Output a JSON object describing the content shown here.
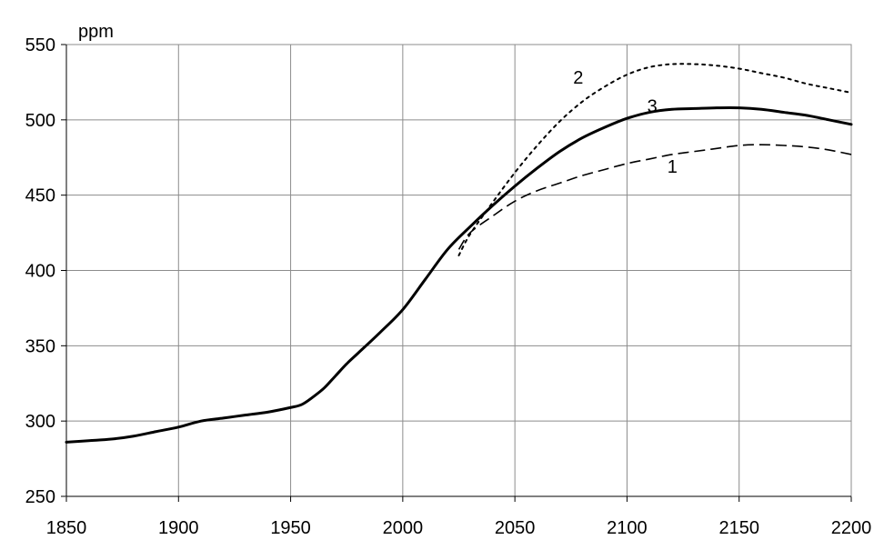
{
  "chart_data": {
    "type": "line",
    "title": "",
    "xlabel": "",
    "ylabel": "ppm",
    "xlim": [
      1850,
      2200
    ],
    "ylim": [
      250,
      550
    ],
    "xticks": [
      1850,
      1900,
      1950,
      2000,
      2050,
      2100,
      2150,
      2200
    ],
    "yticks": [
      250,
      300,
      350,
      400,
      450,
      500,
      550
    ],
    "grid": true,
    "legend": "none",
    "series": [
      {
        "label": "3",
        "style": "solid",
        "color": "#000000",
        "x": [
          1850,
          1860,
          1870,
          1880,
          1890,
          1900,
          1910,
          1920,
          1930,
          1940,
          1950,
          1955,
          1960,
          1965,
          1970,
          1975,
          1980,
          1990,
          2000,
          2010,
          2020,
          2030,
          2040,
          2050,
          2060,
          2070,
          2080,
          2090,
          2100,
          2110,
          2120,
          2130,
          2140,
          2150,
          2160,
          2170,
          2180,
          2190,
          2200
        ],
        "y": [
          286,
          287,
          288,
          290,
          293,
          296,
          300,
          302,
          304,
          306,
          309,
          311,
          316,
          322,
          330,
          338,
          345,
          359,
          374,
          394,
          414,
          429,
          443,
          456,
          468,
          479,
          488,
          495,
          501,
          505,
          507,
          507.5,
          508,
          508,
          507,
          505,
          503,
          500,
          497
        ]
      },
      {
        "label": "2",
        "style": "dotted",
        "color": "#000000",
        "x": [
          2025,
          2030,
          2040,
          2050,
          2060,
          2070,
          2080,
          2090,
          2100,
          2110,
          2120,
          2130,
          2140,
          2150,
          2160,
          2170,
          2180,
          2190,
          2200
        ],
        "y": [
          410,
          424,
          445,
          465,
          483,
          499,
          512,
          522,
          530,
          535,
          537,
          537,
          536,
          534,
          531,
          528,
          524,
          521,
          518
        ]
      },
      {
        "label": "1",
        "style": "dashed",
        "color": "#000000",
        "x": [
          2025,
          2030,
          2040,
          2050,
          2060,
          2070,
          2080,
          2090,
          2100,
          2110,
          2120,
          2130,
          2140,
          2150,
          2160,
          2170,
          2180,
          2190,
          2200
        ],
        "y": [
          414,
          425,
          436,
          446,
          453,
          458,
          463,
          467,
          471,
          474,
          477,
          479,
          481,
          483,
          483.5,
          483,
          482,
          480,
          477
        ]
      }
    ],
    "annotations": [
      {
        "text": "2",
        "x": 2076,
        "y": 524
      },
      {
        "text": "3",
        "x": 2109,
        "y": 505
      },
      {
        "text": "1",
        "x": 2118,
        "y": 465
      }
    ]
  }
}
